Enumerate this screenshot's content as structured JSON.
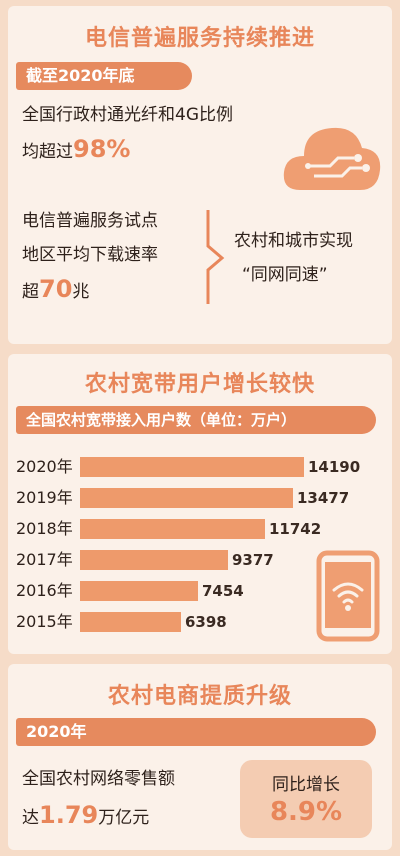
{
  "section1": {
    "title": "电信普遍服务持续推进",
    "banner": "截至2020年底",
    "fiber_text_line1": "全国行政村通光纤和4G比例",
    "fiber_text_prefix": "均超过",
    "fiber_value": "98%",
    "pilot_line1": "电信普遍服务试点",
    "pilot_line2": "地区平均下载速率",
    "pilot_prefix": "超",
    "pilot_value": "70",
    "pilot_suffix": "兆",
    "result_line1": "农村和城市实现",
    "result_line2": "“同网同速”"
  },
  "section2": {
    "title": "农村宽带用户增长较快",
    "banner": "全国农村宽带接入用户数（单位：万户）"
  },
  "section3": {
    "title": "农村电商提质升级",
    "banner": "2020年",
    "sales_line1": "全国农村网络零售额",
    "sales_prefix": "达",
    "sales_value": "1.79",
    "sales_suffix": "万亿元",
    "growth_label": "同比增长",
    "growth_value": "8.9%"
  },
  "colors": {
    "accent": "#e8865a",
    "bar": "#ee9a6b",
    "panel": "#fbf1e9",
    "background": "#f6dcc8"
  },
  "icons": [
    "cloud-circuit-icon",
    "smartphone-wifi-icon",
    "chevron-right-icon"
  ],
  "chart_data": {
    "type": "bar",
    "orientation": "horizontal",
    "title": "全国农村宽带接入用户数（单位：万户）",
    "categories": [
      "2020年",
      "2019年",
      "2018年",
      "2017年",
      "2016年",
      "2015年"
    ],
    "values": [
      14190,
      13477,
      11742,
      9377,
      7454,
      6398
    ],
    "xlim": [
      0,
      14190
    ],
    "grid": false,
    "legend": "none"
  }
}
